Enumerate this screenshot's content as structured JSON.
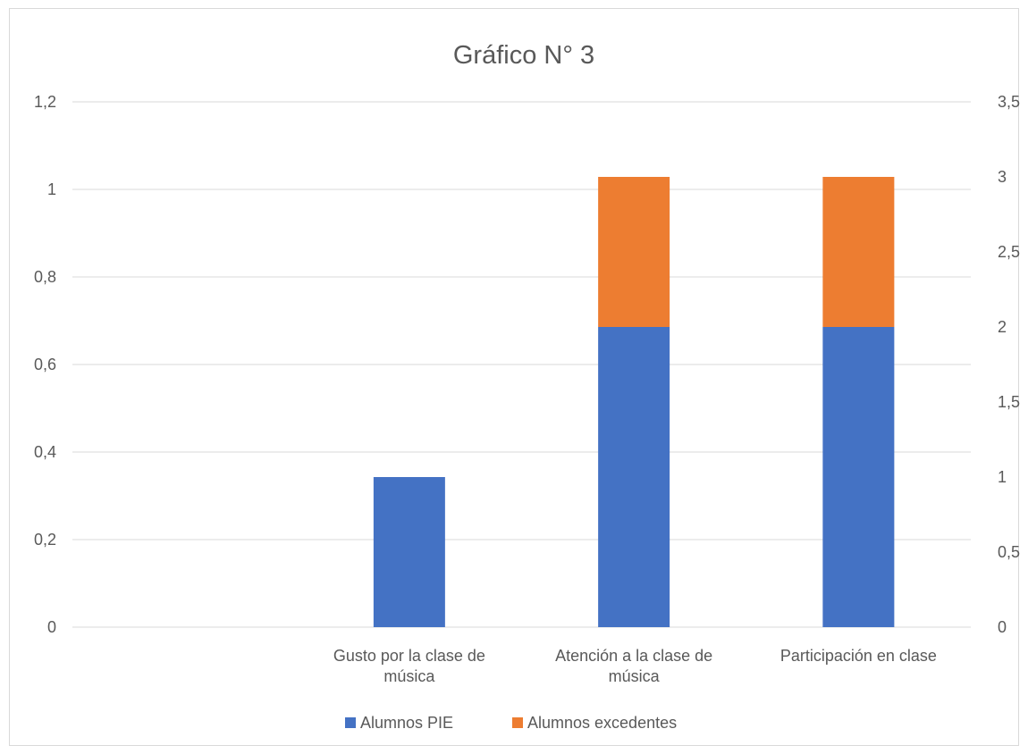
{
  "chart_data": {
    "type": "bar",
    "stacked": true,
    "title": "Gráfico N° 3",
    "categories": [
      [
        "Gusto por la clase de",
        "música"
      ],
      [
        "Atención a la clase de",
        "música"
      ],
      [
        "Participación en clase"
      ]
    ],
    "category_labels": [
      "Gusto por la clase de música",
      "Atención a la clase de música",
      "Participación en clase"
    ],
    "series": [
      {
        "name": "Alumnos PIE",
        "values": [
          1,
          2,
          2
        ],
        "color": "#4472C4",
        "axis": "right"
      },
      {
        "name": "Alumnos excedentes",
        "values": [
          0,
          1,
          1
        ],
        "color": "#ED7D31",
        "axis": "right"
      }
    ],
    "y_left": {
      "ylim": [
        0,
        1.2
      ],
      "ticks": [
        "0",
        "0,2",
        "0,4",
        "0,6",
        "0,8",
        "1",
        "1,2"
      ]
    },
    "y_right": {
      "ylim": [
        0,
        3.5
      ],
      "ticks": [
        "0",
        "0,5",
        "1",
        "1,5",
        "2",
        "2,5",
        "3",
        "3,5"
      ]
    },
    "grid": true,
    "legend_position": "bottom",
    "empty_leading_category_slot": true
  }
}
